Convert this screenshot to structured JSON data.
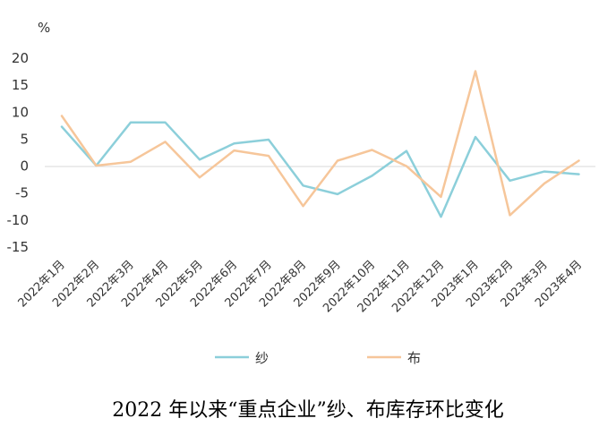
{
  "chart_data": {
    "type": "line",
    "ylabel": "%",
    "ylim": [
      -15,
      20
    ],
    "yticks": [
      20,
      15,
      10,
      5,
      0,
      -5,
      -10,
      -15
    ],
    "grid": false,
    "legend_position": "bottom",
    "categories": [
      "2022年1月",
      "2022年2月",
      "2022年3月",
      "2022年4月",
      "2022年5月",
      "2022年6月",
      "2022年7月",
      "2022年8月",
      "2022年9月",
      "2022年10月",
      "2022年11月",
      "2022年12月",
      "2023年1月",
      "2023年2月",
      "2023年3月",
      "2023年4月"
    ],
    "series": [
      {
        "name": "纱",
        "color": "#8ccfda",
        "values": [
          7.3,
          0.1,
          8.1,
          8.1,
          1.2,
          4.2,
          4.9,
          -3.6,
          -5.2,
          -1.8,
          2.8,
          -9.4,
          5.4,
          -2.7,
          -1.0,
          -1.5
        ]
      },
      {
        "name": "布",
        "color": "#f6c69a",
        "values": [
          9.3,
          0.1,
          0.8,
          4.5,
          -2.1,
          2.9,
          1.9,
          -7.4,
          1.0,
          3.0,
          0.0,
          -5.7,
          17.6,
          -9.1,
          -3.2,
          1.0
        ]
      }
    ]
  },
  "caption": "2022 年以来“重点企业”纱、布库存环比变化"
}
